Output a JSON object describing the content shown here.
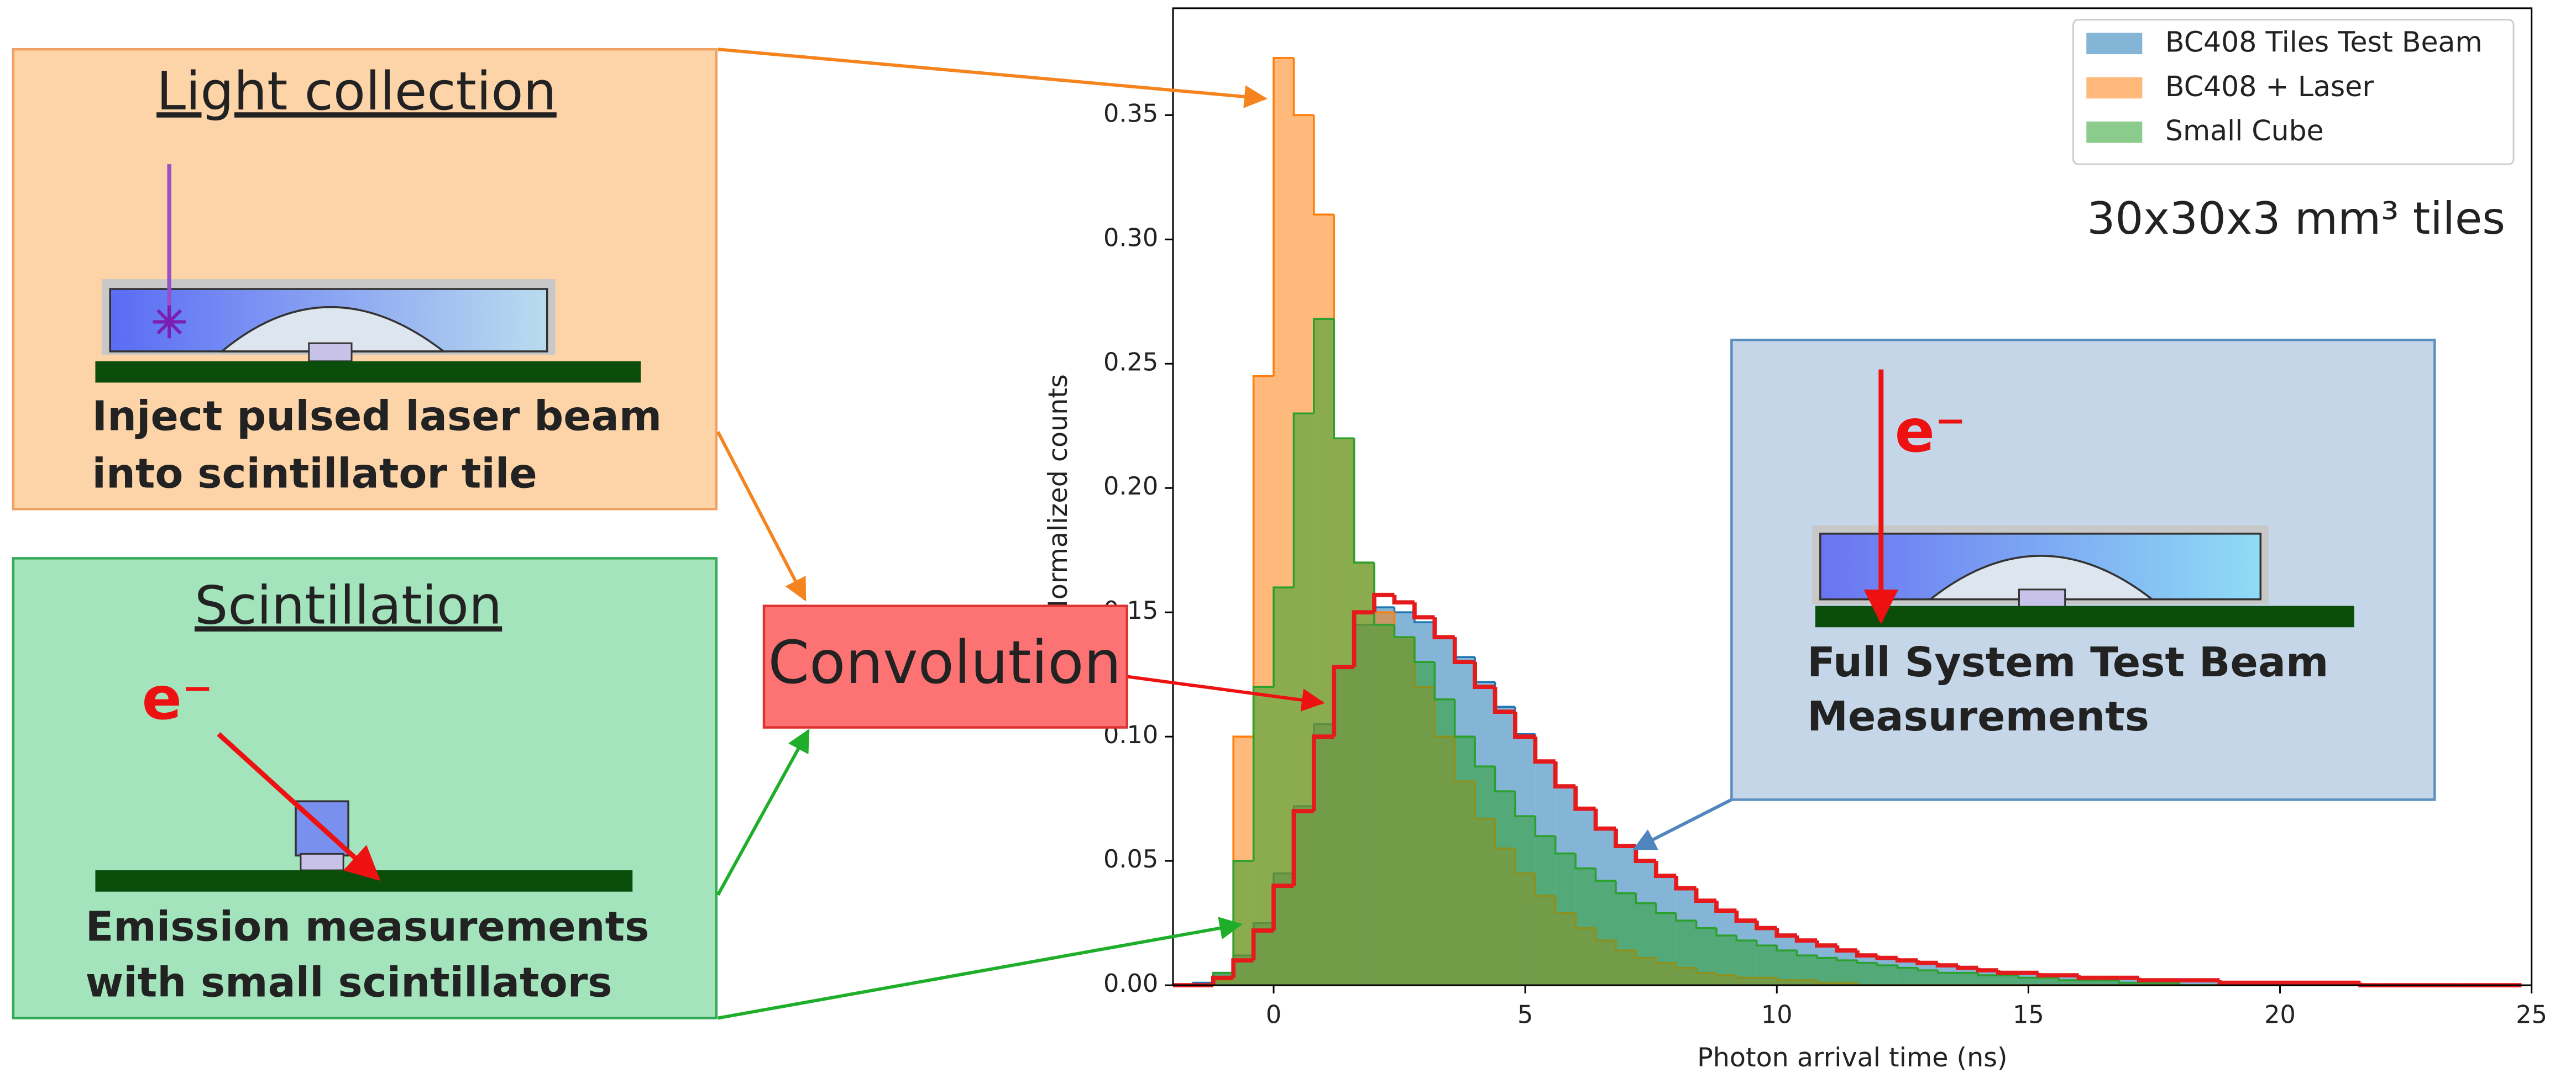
{
  "chart_data": {
    "type": "histogram",
    "xlabel": "Photon arrival time (ns)",
    "ylabel": "Normalized counts",
    "annotation": "30x30x3 mm³ tiles",
    "legend": "upper right",
    "grid": false,
    "xlim": [
      -2,
      25
    ],
    "ylim": [
      0,
      0.393
    ],
    "xticks": [
      0,
      5,
      10,
      15,
      20,
      25
    ],
    "yticks": [
      {
        "value": 0,
        "label": "0.00"
      },
      {
        "value": 0.05,
        "label": "0.05"
      },
      {
        "value": 0.1,
        "label": "0.10"
      },
      {
        "value": 0.15,
        "label": "0.15"
      },
      {
        "value": 0.2,
        "label": "0.20"
      },
      {
        "value": 0.25,
        "label": "0.25"
      },
      {
        "value": 0.3,
        "label": "0.30"
      },
      {
        "value": 0.35,
        "label": "0.35"
      }
    ],
    "bins": [
      -2,
      -1.6,
      -1.2,
      -0.8,
      -0.4,
      0,
      0.4,
      0.8,
      1.2,
      1.6,
      2,
      2.4,
      2.8,
      3.2,
      3.6,
      4,
      4.4,
      4.8,
      5.2,
      5.6,
      6,
      6.4,
      6.8,
      7.2,
      7.6,
      8,
      8.4,
      8.8,
      9.2,
      9.6,
      10,
      10.4,
      10.8,
      11.2,
      11.6,
      12,
      12.4,
      12.8,
      13.2,
      13.6,
      14,
      14.4,
      14.8,
      15.2,
      15.6,
      16,
      16.4,
      16.8,
      17.2,
      17.6,
      18,
      18.4,
      18.8,
      19.2,
      19.6,
      20,
      20.4,
      20.8,
      21.2,
      21.6,
      22,
      22.4,
      22.8,
      23.2,
      23.6,
      24,
      24.4,
      24.8
    ],
    "series": [
      {
        "name": "BC408 Tiles Test Beam",
        "color": "#1f77b4",
        "values": [
          0,
          0.001,
          0.005,
          0.012,
          0.025,
          0.045,
          0.072,
          0.105,
          0.128,
          0.145,
          0.152,
          0.15,
          0.146,
          0.14,
          0.132,
          0.122,
          0.112,
          0.101,
          0.09,
          0.08,
          0.071,
          0.063,
          0.056,
          0.05,
          0.044,
          0.039,
          0.034,
          0.03,
          0.026,
          0.023,
          0.02,
          0.018,
          0.016,
          0.014,
          0.012,
          0.011,
          0.01,
          0.009,
          0.008,
          0.007,
          0.006,
          0.005,
          0.005,
          0.004,
          0.004,
          0.003,
          0.003,
          0.003,
          0.002,
          0.002,
          0.002,
          0.002,
          0.001,
          0.001,
          0.001,
          0.001,
          0.001,
          0.001,
          0.001,
          0,
          0,
          0,
          0,
          0,
          0,
          0,
          0
        ]
      },
      {
        "name": "BC408 + Laser",
        "color": "#ff7f0e",
        "values": [
          0,
          0,
          0.002,
          0.1,
          0.245,
          0.373,
          0.35,
          0.31,
          0.22,
          0.17,
          0.15,
          0.14,
          0.12,
          0.1,
          0.082,
          0.067,
          0.055,
          0.045,
          0.036,
          0.029,
          0.023,
          0.018,
          0.014,
          0.011,
          0.009,
          0.007,
          0.005,
          0.004,
          0.003,
          0.003,
          0.002,
          0.002,
          0.001,
          0.001,
          0,
          0,
          0,
          0,
          0,
          0,
          0,
          0,
          0,
          0,
          0,
          0,
          0,
          0,
          0,
          0,
          0,
          0,
          0,
          0,
          0,
          0,
          0,
          0,
          0,
          0,
          0,
          0,
          0,
          0,
          0,
          0,
          0
        ]
      },
      {
        "name": "Small Cube",
        "color": "#2ca02c",
        "values": [
          0,
          0,
          0.005,
          0.05,
          0.12,
          0.16,
          0.23,
          0.268,
          0.22,
          0.17,
          0.145,
          0.14,
          0.13,
          0.115,
          0.1,
          0.088,
          0.078,
          0.068,
          0.06,
          0.053,
          0.047,
          0.042,
          0.037,
          0.033,
          0.029,
          0.026,
          0.023,
          0.02,
          0.018,
          0.016,
          0.014,
          0.012,
          0.011,
          0.01,
          0.009,
          0.008,
          0.007,
          0.006,
          0.005,
          0.005,
          0.004,
          0.004,
          0.003,
          0.003,
          0.002,
          0.002,
          0.002,
          0.001,
          0.001,
          0.001,
          0,
          0,
          0,
          0,
          0,
          0,
          0,
          0,
          0,
          0,
          0,
          0,
          0,
          0,
          0,
          0,
          0
        ]
      }
    ],
    "convolution": {
      "color": "#e41a1c",
      "values": [
        0,
        0,
        0.003,
        0.01,
        0.022,
        0.04,
        0.07,
        0.1,
        0.128,
        0.15,
        0.157,
        0.154,
        0.148,
        0.14,
        0.13,
        0.12,
        0.11,
        0.1,
        0.09,
        0.08,
        0.071,
        0.063,
        0.056,
        0.05,
        0.044,
        0.039,
        0.034,
        0.03,
        0.026,
        0.023,
        0.02,
        0.018,
        0.016,
        0.014,
        0.012,
        0.011,
        0.01,
        0.009,
        0.008,
        0.007,
        0.006,
        0.005,
        0.005,
        0.004,
        0.004,
        0.003,
        0.003,
        0.003,
        0.002,
        0.002,
        0.002,
        0.002,
        0.001,
        0.001,
        0.001,
        0.001,
        0.001,
        0.001,
        0.001,
        0,
        0,
        0,
        0,
        0,
        0,
        0,
        0
      ]
    }
  },
  "diagram": {
    "light_collection": {
      "title": "Light collection",
      "caption": [
        "Inject pulsed laser beam",
        "into scintillator tile"
      ]
    },
    "scintillation": {
      "title": "Scintillation",
      "particle": "e⁻",
      "caption": [
        "Emission measurements",
        "with small scintillators"
      ]
    },
    "convolution": "Convolution",
    "test_beam": {
      "particle": "e⁻",
      "caption": [
        "Full System Test Beam",
        "Measurements"
      ]
    }
  }
}
